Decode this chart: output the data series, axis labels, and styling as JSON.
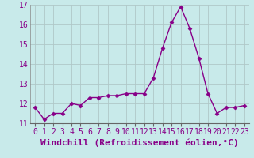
{
  "x": [
    0,
    1,
    2,
    3,
    4,
    5,
    6,
    7,
    8,
    9,
    10,
    11,
    12,
    13,
    14,
    15,
    16,
    17,
    18,
    19,
    20,
    21,
    22,
    23
  ],
  "y": [
    11.8,
    11.2,
    11.5,
    11.5,
    12.0,
    11.9,
    12.3,
    12.3,
    12.4,
    12.4,
    12.5,
    12.5,
    12.5,
    13.3,
    14.8,
    16.1,
    16.9,
    15.8,
    14.3,
    12.5,
    11.5,
    11.8,
    11.8,
    11.9
  ],
  "xlabel": "Windchill (Refroidissement éolien,°C)",
  "ylim": [
    11,
    17
  ],
  "xlim_min": -0.5,
  "xlim_max": 23.5,
  "yticks": [
    11,
    12,
    13,
    14,
    15,
    16,
    17
  ],
  "xticks": [
    0,
    1,
    2,
    3,
    4,
    5,
    6,
    7,
    8,
    9,
    10,
    11,
    12,
    13,
    14,
    15,
    16,
    17,
    18,
    19,
    20,
    21,
    22,
    23
  ],
  "line_color": "#880088",
  "marker": "D",
  "marker_size": 2.5,
  "bg_color": "#c8eaea",
  "grid_color": "#b0c8c8",
  "xlabel_fontsize": 8,
  "tick_fontsize": 7,
  "line_width": 1.0
}
